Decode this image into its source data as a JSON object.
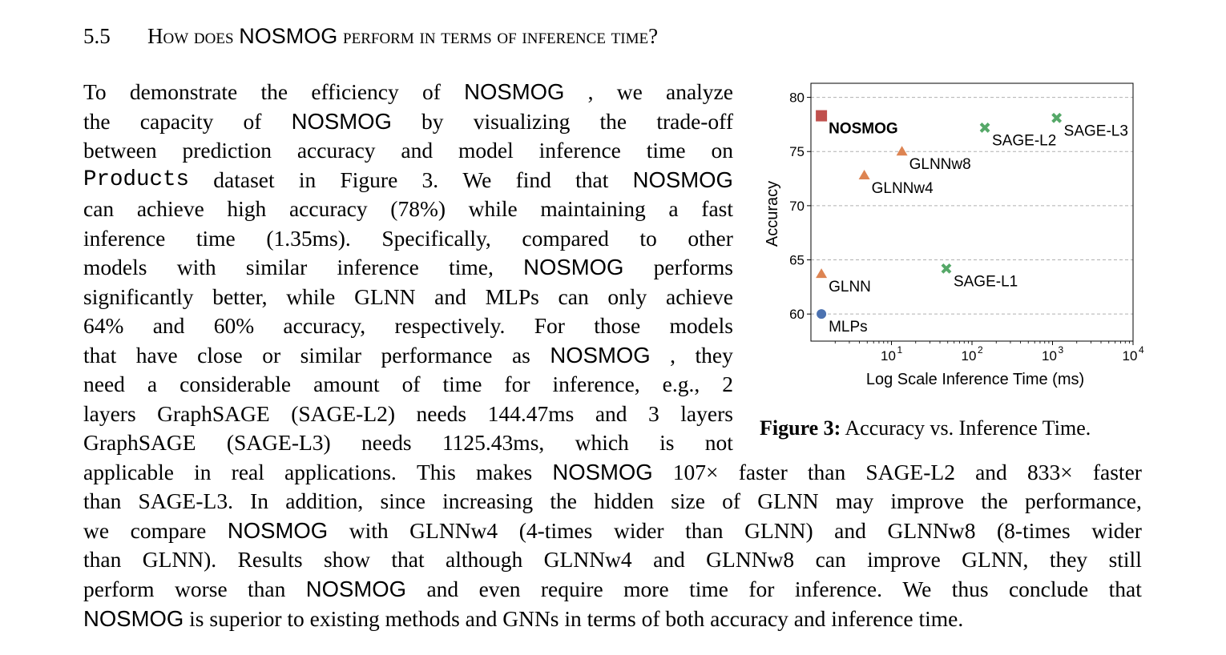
{
  "section": {
    "number": "5.5",
    "title_prefix": "How does ",
    "title_model": "NOSMOG",
    "title_suffix": " perform in terms of inference time?"
  },
  "paragraph_lines": [
    {
      "y": 97,
      "mode": "j",
      "segs": [
        [
          "serif",
          "To demonstrate the efficiency of "
        ],
        [
          "sans",
          "NOSMOG"
        ],
        [
          "serif",
          ", we analyze"
        ]
      ]
    },
    {
      "y": 134,
      "mode": "j",
      "segs": [
        [
          "serif",
          "the capacity of "
        ],
        [
          "sans",
          "NOSMOG"
        ],
        [
          "serif",
          " by visualizing the trade-off"
        ]
      ]
    },
    {
      "y": 170,
      "mode": "j",
      "segs": [
        [
          "serif",
          "between prediction accuracy and model inference time on"
        ]
      ]
    },
    {
      "y": 207,
      "mode": "j",
      "segs": [
        [
          "mono",
          "Products"
        ],
        [
          "serif",
          " dataset in Figure 3.  We find that "
        ],
        [
          "sans",
          "NOSMOG"
        ]
      ]
    },
    {
      "y": 243,
      "mode": "j",
      "segs": [
        [
          "serif",
          "can achieve high accuracy (78%) while maintaining a fast"
        ]
      ]
    },
    {
      "y": 280,
      "mode": "j",
      "segs": [
        [
          "serif",
          "inference time (1.35ms).  Specifically, compared to other"
        ]
      ]
    },
    {
      "y": 316,
      "mode": "j",
      "segs": [
        [
          "serif",
          "models with similar inference time, "
        ],
        [
          "sans",
          "NOSMOG"
        ],
        [
          "serif",
          " performs"
        ]
      ]
    },
    {
      "y": 353,
      "mode": "j",
      "segs": [
        [
          "serif",
          "significantly better, while GLNN and MLPs can only achieve"
        ]
      ]
    },
    {
      "y": 389,
      "mode": "j",
      "segs": [
        [
          "serif",
          "64% and 60% accuracy, respectively.  For those models"
        ]
      ]
    },
    {
      "y": 426,
      "mode": "j",
      "segs": [
        [
          "serif",
          "that have close or similar performance as "
        ],
        [
          "sans",
          "NOSMOG"
        ],
        [
          "serif",
          ", they"
        ]
      ]
    },
    {
      "y": 462,
      "mode": "j",
      "segs": [
        [
          "serif",
          "need a considerable amount of time for inference, e.g., 2"
        ]
      ]
    },
    {
      "y": 499,
      "mode": "j",
      "segs": [
        [
          "serif",
          "layers GraphSAGE (SAGE-L2) needs 144.47ms and 3 layers"
        ]
      ]
    },
    {
      "y": 535,
      "mode": "j",
      "segs": [
        [
          "serif",
          "GraphSAGE (SAGE-L3) needs 1125.43ms, which is not"
        ]
      ]
    },
    {
      "y": 572,
      "mode": "jw",
      "segs": [
        [
          "serif",
          "applicable in real applications. This makes "
        ],
        [
          "sans",
          "NOSMOG"
        ],
        [
          "serif",
          " 107× faster than SAGE-L2 and 833× faster"
        ]
      ]
    },
    {
      "y": 608,
      "mode": "jw",
      "segs": [
        [
          "serif",
          "than SAGE-L3. In addition, since increasing the hidden size of GLNN may improve the performance,"
        ]
      ]
    },
    {
      "y": 645,
      "mode": "jw",
      "segs": [
        [
          "serif",
          "we compare "
        ],
        [
          "sans",
          "NOSMOG"
        ],
        [
          "serif",
          " with GLNNw4 (4-times wider than GLNN) and GLNNw8 (8-times wider"
        ]
      ]
    },
    {
      "y": 681,
      "mode": "jw",
      "segs": [
        [
          "serif",
          "than GLNN). Results show that although GLNNw4 and GLNNw8 can improve GLNN, they still"
        ]
      ]
    },
    {
      "y": 718,
      "mode": "jw",
      "segs": [
        [
          "serif",
          "perform worse than "
        ],
        [
          "sans",
          "NOSMOG"
        ],
        [
          "serif",
          " and even require more time for inference.  We thus conclude that"
        ]
      ]
    },
    {
      "y": 755,
      "mode": "nj",
      "segs": [
        [
          "sans",
          "NOSMOG"
        ],
        [
          "serif",
          " is superior to existing methods and GNNs in terms of both accuracy and inference time."
        ]
      ]
    }
  ],
  "caption": {
    "label": "Figure 3:",
    "text": " Accuracy vs. Inference Time."
  },
  "chart_data": {
    "type": "scatter",
    "x_scale": "log",
    "xlabel": "Log Scale Inference Time (ms)",
    "ylabel": "Accuracy",
    "xlim": [
      1.0,
      10000
    ],
    "ylim": [
      57.5,
      81.3
    ],
    "x_ticks": [
      {
        "value": 10,
        "exp": "1"
      },
      {
        "value": 100,
        "exp": "2"
      },
      {
        "value": 1000,
        "exp": "3"
      },
      {
        "value": 10000,
        "exp": "4"
      }
    ],
    "y_ticks": [
      60,
      65,
      70,
      75,
      80
    ],
    "grid": "horizontal dashed",
    "points": [
      {
        "name": "NOSMOG",
        "x": 1.35,
        "y": 78.3,
        "marker": "square",
        "color": "#c0504d",
        "bold": true
      },
      {
        "name": "GLNNw8",
        "x": 13.5,
        "y": 75.0,
        "marker": "triangle",
        "color": "#dd8452",
        "bold": false
      },
      {
        "name": "GLNNw4",
        "x": 4.6,
        "y": 72.8,
        "marker": "triangle",
        "color": "#dd8452",
        "bold": false
      },
      {
        "name": "GLNN",
        "x": 1.35,
        "y": 63.7,
        "marker": "triangle",
        "color": "#dd8452",
        "bold": false
      },
      {
        "name": "MLPs",
        "x": 1.35,
        "y": 60.0,
        "marker": "circle",
        "color": "#4c72b0",
        "bold": false
      },
      {
        "name": "SAGE-L1",
        "x": 48,
        "y": 64.2,
        "marker": "cross",
        "color": "#55a868",
        "bold": false
      },
      {
        "name": "SAGE-L2",
        "x": 144.47,
        "y": 77.2,
        "marker": "cross",
        "color": "#55a868",
        "bold": false
      },
      {
        "name": "SAGE-L3",
        "x": 1125.43,
        "y": 78.1,
        "marker": "cross",
        "color": "#55a868",
        "bold": false
      }
    ]
  }
}
